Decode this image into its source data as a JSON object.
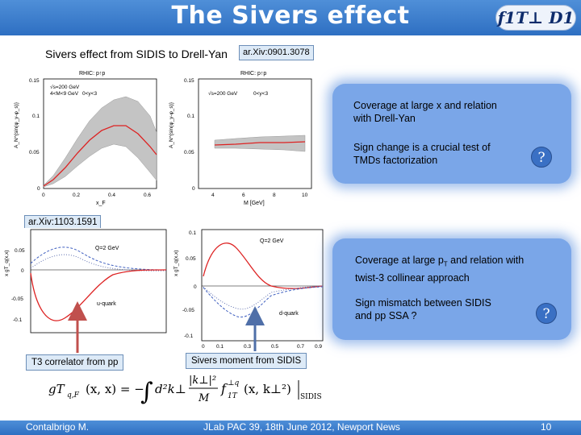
{
  "header": {
    "title": "The Sivers effect",
    "logo_text": "f1T⊥ D1"
  },
  "subtitle": "Sivers effect from SIDIS to Drell-Yan",
  "ref_top": "ar.Xiv:0901.3078",
  "ref_mid": "ar.Xiv:1103.1591",
  "plot_tl": {
    "heading": "RHIC: p↑p",
    "legend1": "√s=200 GeV",
    "legend2": "4<M<9 GeV",
    "legend3": "0<y<3",
    "ylabel": "A_N^{sin(φ_y-φ_s)}",
    "xlabel": "x_F",
    "yticks": [
      "0.15",
      "0.1",
      "0.05",
      "0"
    ],
    "xticks": [
      "0",
      "0.2",
      "0.4",
      "0.6"
    ]
  },
  "plot_tr": {
    "heading": "RHIC: p↑p",
    "legend1": "√s=200 GeV",
    "legend2": "0<y<3",
    "ylabel": "A_N^{sin(φ_y-φ_s)}",
    "xlabel": "M [GeV]",
    "yticks": [
      "0.15",
      "0.1",
      "0.05",
      "0"
    ],
    "xticks": [
      "4",
      "6",
      "8",
      "10"
    ]
  },
  "plot_bl": {
    "ylabel": "x gT_q(x,x)",
    "legend": "Q=2 GeV",
    "curve_label": "u-quark",
    "yticks": [
      "0.05",
      "0",
      "-0.05",
      "-0.1"
    ],
    "xticks": [
      "0",
      "0.1",
      "0.3",
      "0.5",
      "0.7",
      "0.9"
    ]
  },
  "plot_br": {
    "ylabel": "x gT_q(x,x)",
    "legend": "Q=2 GeV",
    "curve_label": "d-quark",
    "yticks": [
      "0.1",
      "0.05",
      "0",
      "-0.05",
      "-0.1"
    ],
    "xticks": [
      "0",
      "0.1",
      "0.3",
      "0.5",
      "0.7",
      "0.9"
    ]
  },
  "callout_top": {
    "heading": "Coverage at large x and relation with Drell-Yan",
    "text": "Sign change is a crucial test of TMDs factorization",
    "badge": "?"
  },
  "callout_bottom": {
    "heading_prefix": "Coverage at large p",
    "heading_sub": "T",
    "heading_suffix": " and relation with twist-3 collinear approach",
    "text": "Sign mismatch between SIDIS and pp SSA ?",
    "badge": "?"
  },
  "caption_left": "T3 correlator from pp",
  "caption_right": "Sivers moment from SIDIS",
  "formula": {
    "lhs": "gT",
    "lhs_sub": "q,F",
    "lhs_args": "(x, x) = −",
    "integral_body": "d²k⊥",
    "fraction_num": "|k⊥|²",
    "fraction_den": "M",
    "function": "f",
    "function_sup": "⊥q",
    "function_sub": "1T",
    "function_args": "(x, k⊥²)",
    "bar_label": "SIDIS"
  },
  "footer": {
    "author": "Contalbrigo M.",
    "event": "JLab PAC 39, 18th June 2012, Newport News",
    "page": "10"
  },
  "colors": {
    "accent_blue": "#2e6fc2",
    "callout_fill": "#7aa6e8",
    "arrow_red": "#c0504d",
    "arrow_blue": "#4f6fa8",
    "curve_red": "#d22",
    "band_gray": "#c4c4c4"
  }
}
